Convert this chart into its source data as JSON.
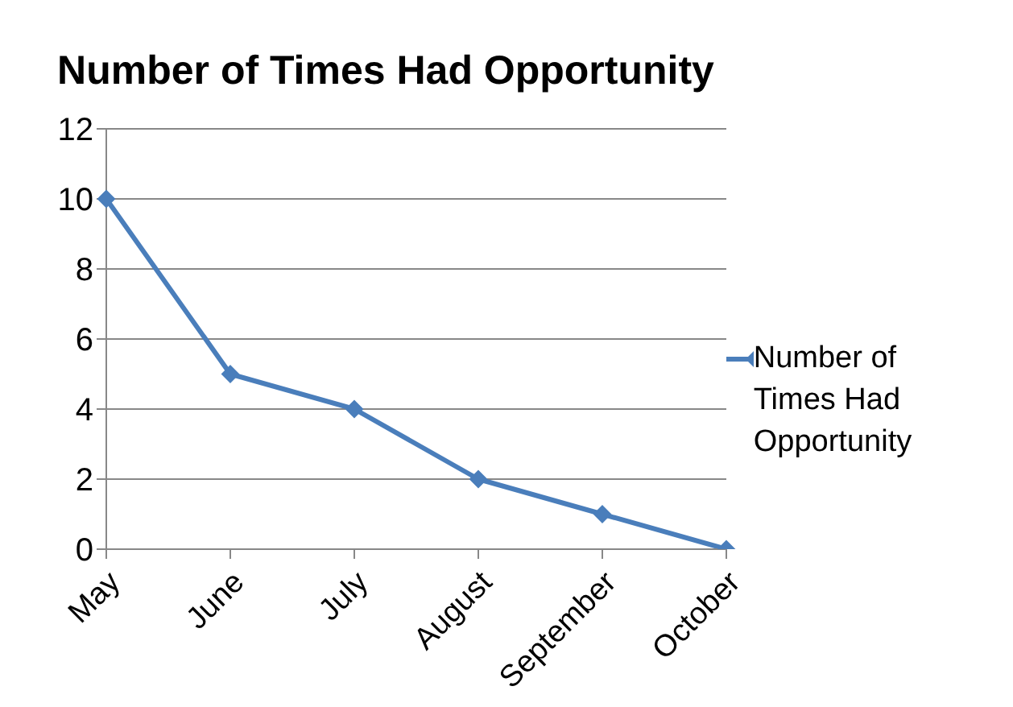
{
  "chart_data": {
    "type": "line",
    "title": "Number of Times Had Opportunity",
    "categories": [
      "May",
      "June",
      "July",
      "August",
      "September",
      "October"
    ],
    "series": [
      {
        "name": "Number of Times Had Opportunity",
        "color": "#4a7ebb",
        "values": [
          10,
          5,
          4,
          2,
          1,
          0
        ]
      }
    ],
    "ylim": [
      0,
      12
    ],
    "yticks": [
      0,
      2,
      4,
      6,
      8,
      10,
      12
    ],
    "grid": "y",
    "legend": "right",
    "marker": "diamond",
    "line_style": "solid"
  }
}
